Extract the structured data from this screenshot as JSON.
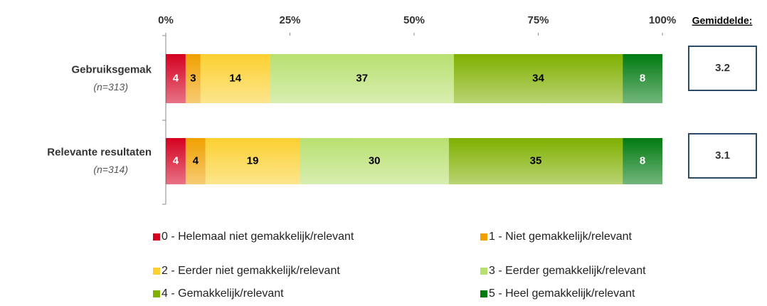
{
  "chart_data": {
    "type": "stacked_bar_horizontal",
    "categories": [
      "Gebruiksgemak",
      "Relevante resultaten"
    ],
    "category_notes": [
      "(n=313)",
      "(n=314)"
    ],
    "series": [
      {
        "name": "0 - Helemaal niet gemakkelijk/relevant",
        "color": "#d40020",
        "values": [
          4,
          4
        ]
      },
      {
        "name": "1 - Niet gemakkelijk/relevant",
        "color": "#f0a000",
        "values": [
          3,
          4
        ]
      },
      {
        "name": "2 - Eerder niet gemakkelijk/relevant",
        "color": "#fbd030",
        "values": [
          14,
          19
        ]
      },
      {
        "name": "3 - Eerder gemakkelijk/relevant",
        "color": "#b8e070",
        "values": [
          37,
          30
        ]
      },
      {
        "name": "4 - Gemakkelijk/relevant",
        "color": "#80b000",
        "values": [
          34,
          35
        ]
      },
      {
        "name": "5 - Heel gemakkelijk/relevant",
        "color": "#007a10",
        "values": [
          8,
          8
        ]
      }
    ],
    "xlim": [
      0,
      100
    ],
    "xticks": [
      {
        "value": 0,
        "label": "0%"
      },
      {
        "value": 25,
        "label": "25%"
      },
      {
        "value": 50,
        "label": "50%"
      },
      {
        "value": 75,
        "label": "75%"
      },
      {
        "value": 100,
        "label": "100%"
      }
    ],
    "average_title": "Gemiddelde:",
    "averages": [
      3.2,
      3.1
    ]
  }
}
